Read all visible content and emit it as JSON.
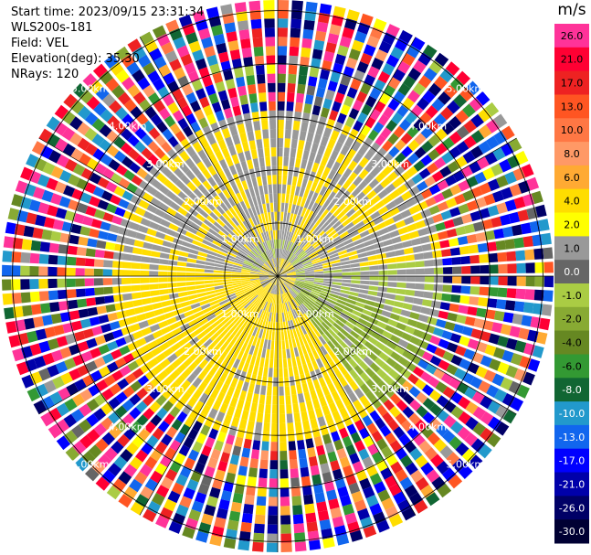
{
  "header": {
    "start_time": "Start time: 2023/09/15 23:31:34",
    "instrument": "WLS200s-181",
    "field": "Field: VEL",
    "elevation": "Elevation(deg): 35.30",
    "nrays": "NRays: 120"
  },
  "chart_data": {
    "type": "heatmap",
    "projection": "polar-ppi",
    "field": "VEL",
    "unit": "m/s",
    "n_rays": 120,
    "elevation_deg": 35.3,
    "range_rings_km": [
      1.0,
      2.0,
      3.0,
      4.0,
      5.0
    ],
    "range_ring_labels": [
      "1.00km",
      "2.00km",
      "3.00km",
      "4.00km",
      "5.00km"
    ],
    "max_range_km": 5.2,
    "grid": true,
    "spokes_deg": [
      0,
      30,
      60,
      90,
      120,
      150,
      180,
      210,
      240,
      270,
      300,
      330
    ],
    "colorbar": {
      "ticks": [
        26.0,
        21.0,
        17.0,
        13.0,
        10.0,
        8.0,
        6.0,
        4.0,
        2.0,
        1.0,
        0.0,
        -1.0,
        -2.0,
        -4.0,
        -6.0,
        -8.0,
        -10.0,
        -13.0,
        -17.0,
        -21.0,
        -26.0,
        -30.0
      ],
      "tick_labels": [
        "26.0",
        "21.0",
        "17.0",
        "13.0",
        "10.0",
        "8.0",
        "6.0",
        "4.0",
        "2.0",
        "1.0",
        "0.0",
        "-1.0",
        "-2.0",
        "-4.0",
        "-6.0",
        "-8.0",
        "-10.0",
        "-13.0",
        "-17.0",
        "-21.0",
        "-26.0",
        "-30.0"
      ],
      "colors": [
        "#ff3399",
        "#ff0033",
        "#ee2222",
        "#ff5522",
        "#ff7744",
        "#ff9966",
        "#ffaa33",
        "#ffdd00",
        "#ffff00",
        "#999999",
        "#666666",
        "#aacc44",
        "#88aa33",
        "#668822",
        "#339933",
        "#116633",
        "#2299cc",
        "#1166ee",
        "#0000ff",
        "#0000aa",
        "#000066",
        "#000033"
      ]
    }
  }
}
